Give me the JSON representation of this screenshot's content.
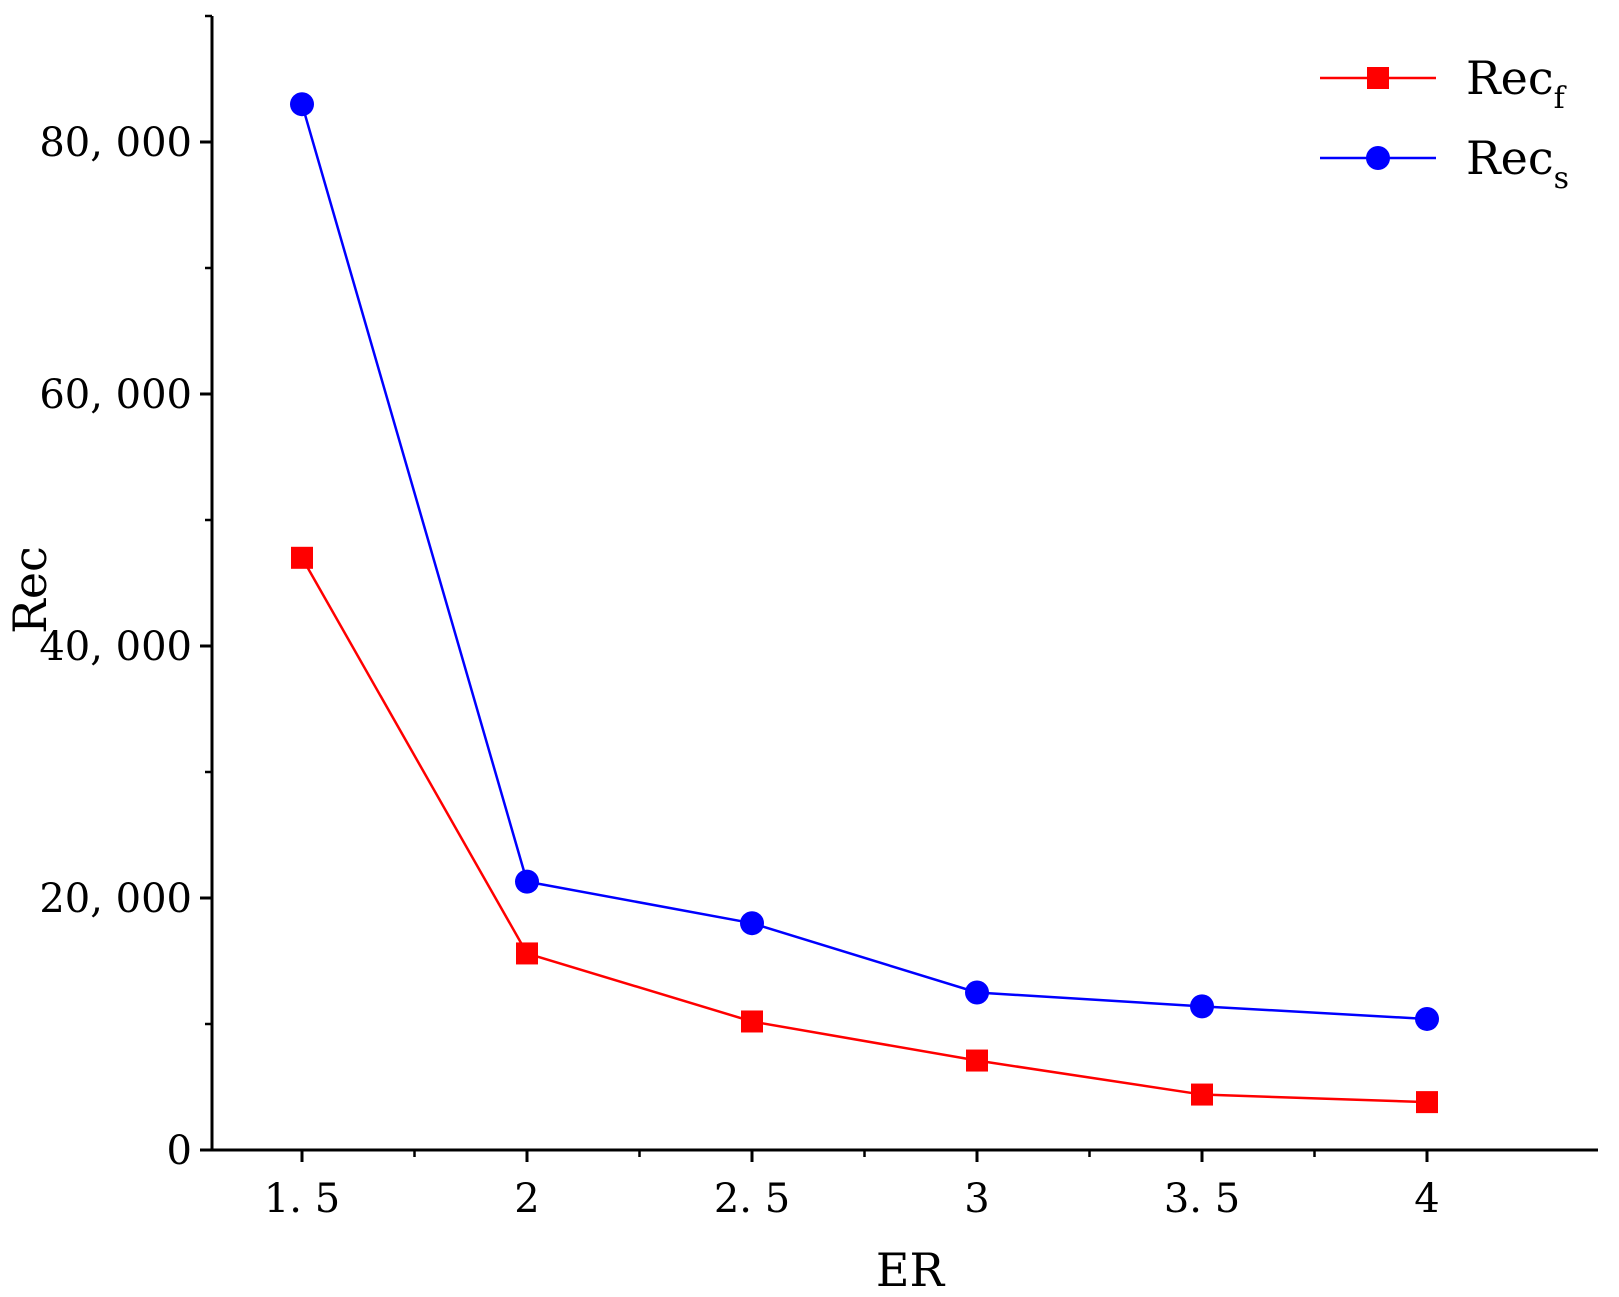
{
  "chart_data": {
    "type": "line",
    "xlabel": "ER",
    "ylabel": "Rec",
    "x": [
      1.5,
      2,
      2.5,
      3,
      3.5,
      4
    ],
    "x_tick_labels": [
      "1. 5",
      "2",
      "2. 5",
      "3",
      "3. 5",
      "4"
    ],
    "xlim": [
      1.3,
      4.38
    ],
    "ylim": [
      0,
      90000
    ],
    "y_ticks": [
      0,
      20000,
      40000,
      60000,
      80000
    ],
    "y_tick_labels": [
      "0",
      "20, 000",
      "40, 000",
      "60, 000",
      "80, 000"
    ],
    "grid": false,
    "legend_position": "top-right",
    "series": [
      {
        "name": "Rec",
        "subscript": "f",
        "color": "#ff0000",
        "marker": "square",
        "values": [
          47000,
          15600,
          10200,
          7100,
          4400,
          3800
        ]
      },
      {
        "name": "Rec",
        "subscript": "s",
        "color": "#0000ff",
        "marker": "circle",
        "values": [
          83000,
          21300,
          18000,
          12500,
          11400,
          10400
        ]
      }
    ]
  }
}
